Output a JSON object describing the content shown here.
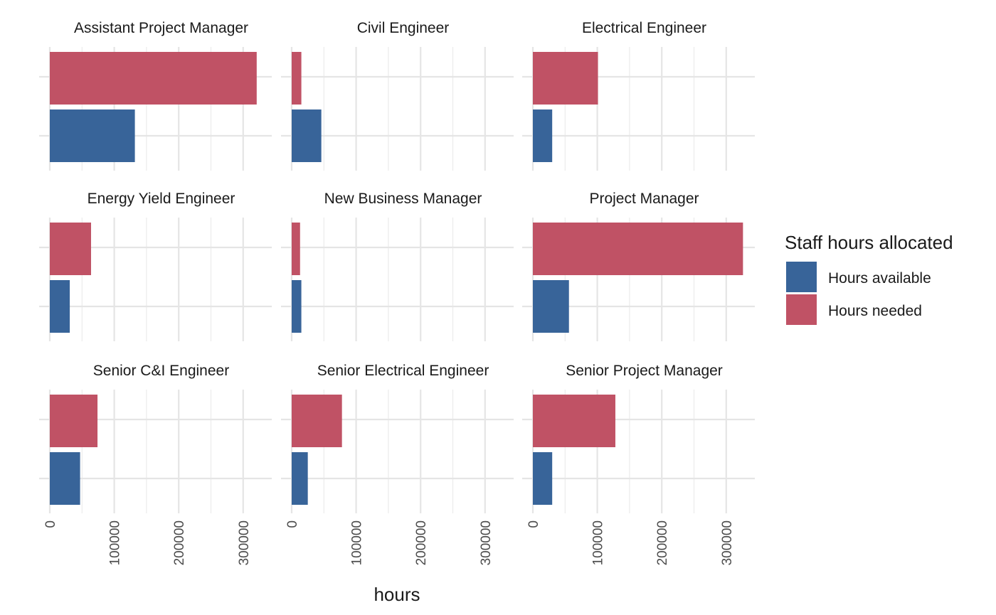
{
  "chart_data": {
    "type": "bar",
    "orientation": "horizontal",
    "facet_by": "role",
    "xlabel": "hours",
    "ylabel": "",
    "xlim": [
      0,
      330000
    ],
    "x_ticks": [
      0,
      100000,
      200000,
      300000
    ],
    "x_tick_labels": [
      "0",
      "100000",
      "200000",
      "300000"
    ],
    "grid": true,
    "legend": {
      "title": "Staff hours allocated",
      "position": "right",
      "items": [
        {
          "key": "available",
          "label": "Hours available",
          "color": "#386499"
        },
        {
          "key": "needed",
          "label": "Hours needed",
          "color": "#C05265"
        }
      ]
    },
    "facets": [
      {
        "title": "Assistant Project Manager",
        "available": 132000,
        "needed": 321000
      },
      {
        "title": "Civil Engineer",
        "available": 46000,
        "needed": 15000
      },
      {
        "title": "Electrical Engineer",
        "available": 30000,
        "needed": 101000
      },
      {
        "title": "Energy Yield Engineer",
        "available": 31000,
        "needed": 64000
      },
      {
        "title": "New Business Manager",
        "available": 15000,
        "needed": 13000
      },
      {
        "title": "Project Manager",
        "available": 56000,
        "needed": 326000
      },
      {
        "title": "Senior C&I Engineer",
        "available": 47000,
        "needed": 74000
      },
      {
        "title": "Senior Electrical Engineer",
        "available": 25000,
        "needed": 78000
      },
      {
        "title": "Senior Project Manager",
        "available": 30000,
        "needed": 128000
      }
    ]
  }
}
